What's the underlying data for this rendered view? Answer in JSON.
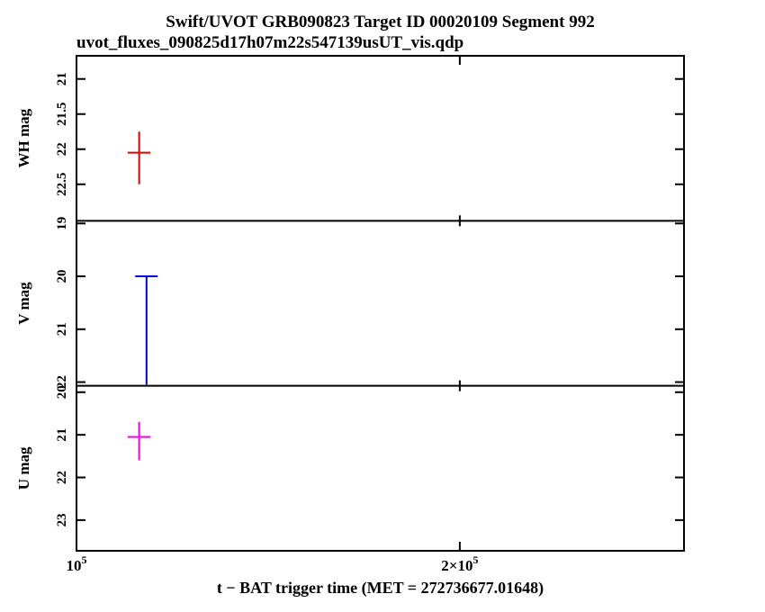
{
  "chart_data": {
    "type": "scatter",
    "title": "Swift/UVOT GRB090823 Target ID 00020109 Segment 992",
    "subtitle": "uvot_fluxes_090825d17h07m22s547139usUT_vis.qdp",
    "xlabel": "t − BAT trigger time (MET = 272736677.01648)",
    "xscale": "log",
    "xlim": [
      100000,
      300000
    ],
    "grid": false,
    "legend": "none",
    "xticks": [
      {
        "value": 100000,
        "prefix": "",
        "mantissa": "10",
        "exponent": "5"
      },
      {
        "value": 200000,
        "prefix": "2×",
        "mantissa": "10",
        "exponent": "5"
      }
    ],
    "panels": [
      {
        "ylabel": "WH mag",
        "ylim_top": 20.67,
        "ylim_bottom": 23.02,
        "yticks": [
          21,
          21.5,
          22,
          22.5
        ],
        "points": [
          {
            "style": "cross",
            "x": 112000,
            "xerr": 2300,
            "y": 22.05,
            "yerr_up": 0.3,
            "yerr_down": 0.45,
            "color": "#dd0000"
          }
        ]
      },
      {
        "ylabel": "V mag",
        "ylim_top": 18.95,
        "ylim_bottom": 22.07,
        "yticks": [
          19,
          20,
          21,
          22
        ],
        "points": [
          {
            "style": "upper-limit",
            "x": 113500,
            "xerr": 2300,
            "y": 20.0,
            "limit_end": 22.05,
            "color": "#0000dd"
          }
        ]
      },
      {
        "ylabel": "U mag",
        "ylim_top": 19.85,
        "ylim_bottom": 23.72,
        "yticks": [
          20,
          21,
          22,
          23
        ],
        "points": [
          {
            "style": "cross",
            "x": 112000,
            "xerr": 2300,
            "y": 21.05,
            "yerr_up": 0.35,
            "yerr_down": 0.55,
            "color": "#ee00ee"
          }
        ]
      }
    ]
  }
}
